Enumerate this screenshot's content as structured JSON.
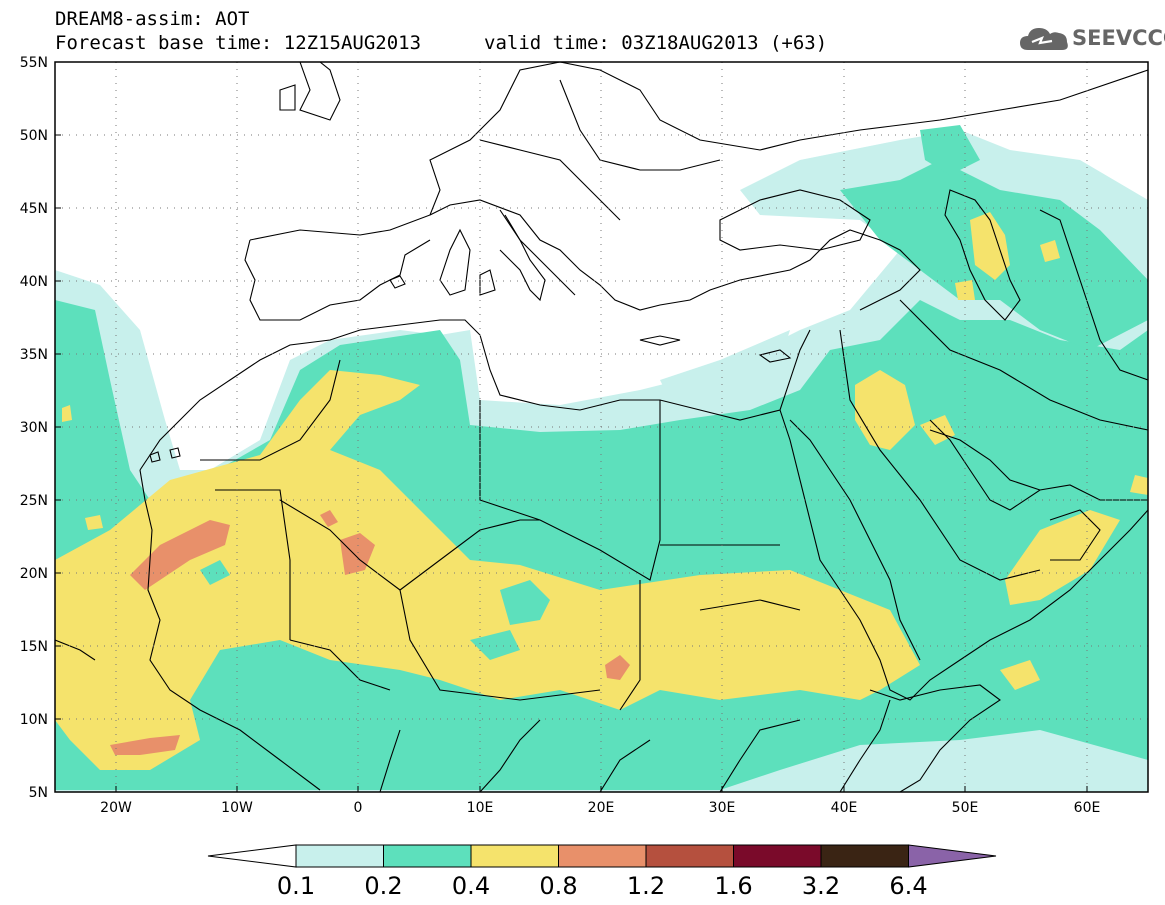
{
  "header": {
    "title": "DREAM8-assim: AOT",
    "base_time": "Forecast base time: 12Z15AUG2013",
    "valid_time": "valid time: 03Z18AUG2013 (+63)"
  },
  "logo": {
    "text": "SEEVCCC"
  },
  "axes": {
    "lat_labels": [
      "55N",
      "50N",
      "45N",
      "40N",
      "35N",
      "30N",
      "25N",
      "20N",
      "15N",
      "10N",
      "5N"
    ],
    "lon_labels": [
      "20W",
      "10W",
      "0",
      "10E",
      "20E",
      "30E",
      "40E",
      "50E",
      "60E"
    ]
  },
  "colorbar": {
    "labels": [
      "0.1",
      "0.2",
      "0.4",
      "0.8",
      "1.2",
      "1.6",
      "3.2",
      "6.4"
    ],
    "colors": [
      "#c8f0ec",
      "#5de0bc",
      "#f5e36c",
      "#e8906a",
      "#b5503e",
      "#7a0a2a",
      "#3a2414",
      "#8a63a8"
    ]
  },
  "map_extent": {
    "lon": [
      -25,
      65
    ],
    "lat": [
      5,
      55
    ]
  }
}
